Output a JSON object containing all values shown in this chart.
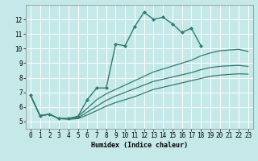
{
  "title": "",
  "xlabel": "Humidex (Indice chaleur)",
  "ylabel": "",
  "bg_color": "#c5e8e8",
  "grid_color": "#ffffff",
  "line_color": "#2e7d6e",
  "xlim": [
    -0.5,
    23.5
  ],
  "ylim": [
    4.5,
    13.0
  ],
  "yticks": [
    5,
    6,
    7,
    8,
    9,
    10,
    11,
    12
  ],
  "xticks": [
    0,
    1,
    2,
    3,
    4,
    5,
    6,
    7,
    8,
    9,
    10,
    11,
    12,
    13,
    14,
    15,
    16,
    17,
    18,
    19,
    20,
    21,
    22,
    23
  ],
  "series": [
    {
      "x": [
        0,
        1,
        2,
        3,
        4,
        5,
        6,
        7,
        8,
        9,
        10,
        11,
        12,
        13,
        14,
        15,
        16,
        17,
        18,
        19,
        20,
        21,
        22,
        23
      ],
      "y": [
        6.8,
        5.4,
        5.5,
        5.2,
        5.2,
        5.35,
        6.5,
        7.3,
        7.3,
        10.3,
        10.2,
        11.5,
        12.5,
        12.0,
        12.15,
        11.7,
        11.1,
        11.4,
        10.2,
        null,
        null,
        null,
        null,
        null
      ],
      "marker": "D",
      "markersize": 2.0,
      "linewidth": 1.0,
      "linestyle": "-"
    },
    {
      "x": [
        0,
        1,
        2,
        3,
        4,
        5,
        6,
        7,
        8,
        9,
        10,
        11,
        12,
        13,
        14,
        15,
        16,
        17,
        18,
        19,
        20,
        21,
        22,
        23
      ],
      "y": [
        6.8,
        5.4,
        5.5,
        5.2,
        5.2,
        5.35,
        5.9,
        6.5,
        6.9,
        7.2,
        7.5,
        7.8,
        8.1,
        8.4,
        8.6,
        8.8,
        9.0,
        9.2,
        9.5,
        9.7,
        9.85,
        9.9,
        9.95,
        9.8
      ],
      "marker": null,
      "markersize": 0,
      "linewidth": 0.9,
      "linestyle": "-"
    },
    {
      "x": [
        0,
        1,
        2,
        3,
        4,
        5,
        6,
        7,
        8,
        9,
        10,
        11,
        12,
        13,
        14,
        15,
        16,
        17,
        18,
        19,
        20,
        21,
        22,
        23
      ],
      "y": [
        6.8,
        5.4,
        5.5,
        5.2,
        5.2,
        5.25,
        5.65,
        6.05,
        6.45,
        6.75,
        7.0,
        7.25,
        7.5,
        7.75,
        7.9,
        8.05,
        8.2,
        8.35,
        8.55,
        8.7,
        8.78,
        8.82,
        8.85,
        8.78
      ],
      "marker": null,
      "markersize": 0,
      "linewidth": 0.9,
      "linestyle": "-"
    },
    {
      "x": [
        0,
        1,
        2,
        3,
        4,
        5,
        6,
        7,
        8,
        9,
        10,
        11,
        12,
        13,
        14,
        15,
        16,
        17,
        18,
        19,
        20,
        21,
        22,
        23
      ],
      "y": [
        6.8,
        5.4,
        5.5,
        5.2,
        5.15,
        5.2,
        5.45,
        5.75,
        6.05,
        6.3,
        6.5,
        6.7,
        6.95,
        7.2,
        7.35,
        7.5,
        7.65,
        7.8,
        7.95,
        8.1,
        8.18,
        8.23,
        8.27,
        8.25
      ],
      "marker": null,
      "markersize": 0,
      "linewidth": 0.9,
      "linestyle": "-"
    }
  ]
}
